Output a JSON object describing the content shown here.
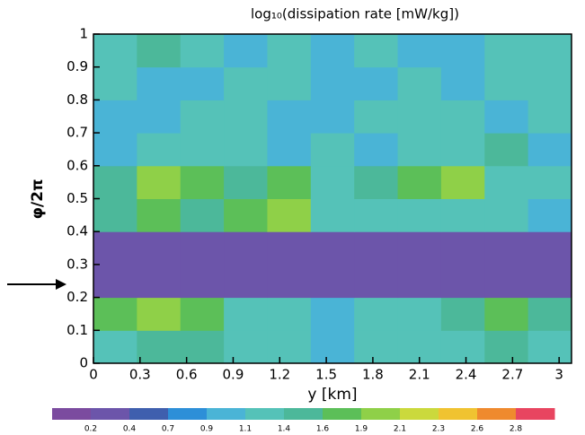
{
  "chart_data": {
    "type": "heatmap",
    "title": "log₁₀(dissipation rate [mW/kg])",
    "xlabel": "y [km]",
    "ylabel": "φ/2π",
    "x": [
      0.14,
      0.42,
      0.7,
      0.98,
      1.26,
      1.54,
      1.82,
      2.1,
      2.38,
      2.66,
      2.94
    ],
    "y": [
      0.05,
      0.15,
      0.25,
      0.35,
      0.45,
      0.55,
      0.65,
      0.75,
      0.85,
      0.95
    ],
    "z": [
      [
        1.2,
        1.4,
        1.5,
        1.1,
        1.2,
        1.0,
        1.2,
        1.3,
        1.2,
        1.4,
        1.2
      ],
      [
        1.6,
        1.9,
        1.7,
        1.3,
        1.2,
        0.9,
        1.1,
        1.3,
        1.4,
        1.8,
        1.5
      ],
      [
        0.3,
        0.2,
        0.2,
        0.2,
        0.2,
        0.2,
        0.2,
        0.2,
        0.2,
        0.2,
        0.2
      ],
      [
        0.3,
        0.3,
        0.3,
        0.2,
        0.2,
        0.2,
        0.2,
        0.2,
        0.2,
        0.2,
        0.2
      ],
      [
        1.4,
        1.6,
        1.5,
        1.8,
        2.0,
        1.3,
        1.1,
        1.2,
        1.2,
        1.1,
        1.0
      ],
      [
        1.5,
        1.9,
        1.6,
        1.4,
        1.6,
        1.2,
        1.4,
        1.8,
        1.9,
        1.3,
        1.2
      ],
      [
        1.0,
        1.2,
        1.3,
        1.1,
        1.0,
        1.2,
        1.0,
        1.1,
        1.3,
        1.4,
        1.0
      ],
      [
        1.0,
        0.9,
        1.1,
        1.2,
        1.0,
        0.9,
        1.1,
        1.2,
        1.1,
        1.0,
        1.1
      ],
      [
        1.1,
        0.9,
        1.0,
        1.2,
        1.1,
        1.0,
        0.9,
        1.1,
        1.0,
        1.2,
        1.1
      ],
      [
        1.2,
        1.4,
        1.1,
        1.0,
        1.2,
        1.0,
        1.1,
        0.9,
        1.0,
        1.1,
        1.2
      ]
    ],
    "xlim": [
      0,
      3.08
    ],
    "ylim": [
      0,
      1
    ],
    "xticks": [
      0,
      0.3,
      0.6,
      0.9,
      1.2,
      1.5,
      1.8,
      2.1,
      2.4,
      2.7,
      3
    ],
    "yticks": [
      0,
      0.1,
      0.2,
      0.3,
      0.4,
      0.5,
      0.6,
      0.7,
      0.8,
      0.9,
      1
    ],
    "colorbar_levels": [
      0.2,
      0.4,
      0.7,
      0.9,
      1.1,
      1.4,
      1.6,
      1.9,
      2.1,
      2.3,
      2.6,
      2.8
    ],
    "colors": [
      "#7b4b9f",
      "#6c55aa",
      "#3f5fae",
      "#2d8fd8",
      "#4ab4d6",
      "#55c2b8",
      "#4cb89a",
      "#5cbf58",
      "#8fd048",
      "#cbd93c",
      "#f0c331",
      "#ef8a2e",
      "#e84560"
    ]
  }
}
